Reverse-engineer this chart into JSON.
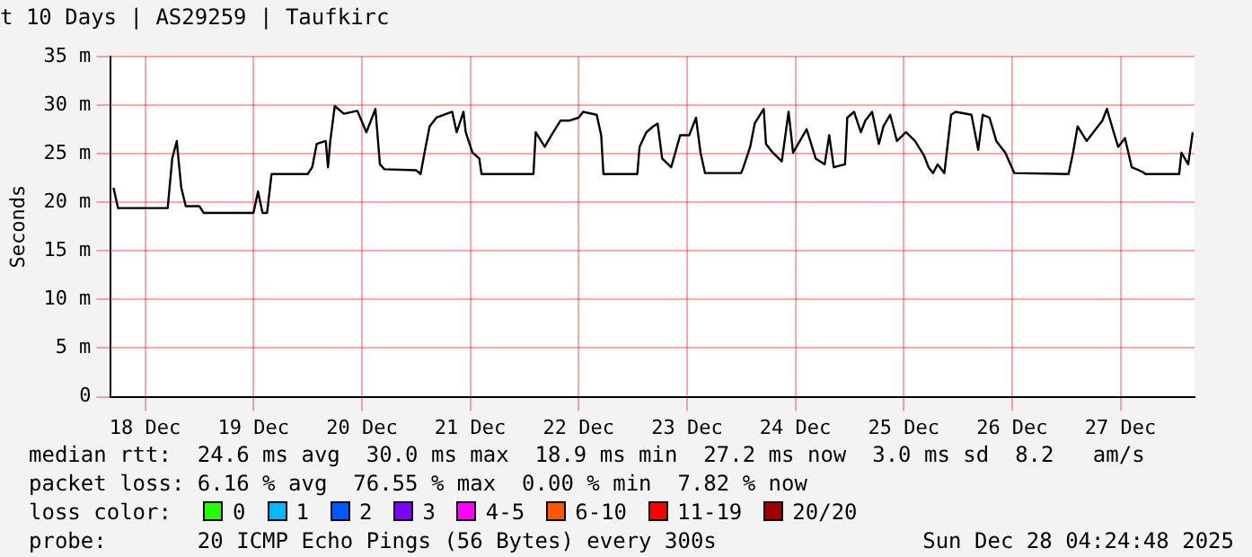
{
  "chart_data": {
    "type": "line",
    "title": "t 10 Days | AS29259 | Taufkirc",
    "ylabel": "Seconds",
    "xlim": [
      "--12-18T04:24",
      "--12-28T04:24"
    ],
    "xticks": [
      {
        "value": "--12-18T12:00",
        "label": "18 Dec"
      },
      {
        "value": "--12-19T12:00",
        "label": "19 Dec"
      },
      {
        "value": "--12-20T12:00",
        "label": "20 Dec"
      },
      {
        "value": "--12-21T12:00",
        "label": "21 Dec"
      },
      {
        "value": "--12-22T12:00",
        "label": "22 Dec"
      },
      {
        "value": "--12-23T12:00",
        "label": "23 Dec"
      },
      {
        "value": "--12-24T12:00",
        "label": "24 Dec"
      },
      {
        "value": "--12-25T12:00",
        "label": "25 Dec"
      },
      {
        "value": "--12-26T12:00",
        "label": "26 Dec"
      },
      {
        "value": "--12-27T12:00",
        "label": "27 Dec"
      }
    ],
    "ylim": [
      0,
      35
    ],
    "yticks": [
      0,
      {
        "value": 5,
        "label": "5 m"
      },
      {
        "value": 10,
        "label": "10 m"
      },
      {
        "value": 15,
        "label": "15 m"
      },
      {
        "value": 20,
        "label": "20 m"
      },
      {
        "value": 25,
        "label": "25 m"
      },
      {
        "value": 30,
        "label": "30 m"
      },
      {
        "value": 35,
        "label": "35 m"
      }
    ],
    "grid": true,
    "x": [
      "--12-18T05:00",
      "--12-18T06:00",
      "--12-18T17:00",
      "--12-18T18:00",
      "--12-18T19:00",
      "--12-18T20:00",
      "--12-18T21:00",
      "--12-19T00:00",
      "--12-19T01:00",
      "--12-19T12:00",
      "--12-19T13:00",
      "--12-19T14:00",
      "--12-19T15:00",
      "--12-19T16:00",
      "--12-20T00:00",
      "--12-20T01:00",
      "--12-20T02:00",
      "--12-20T04:00",
      "--12-20T04:30",
      "--12-20T05:00",
      "--12-20T06:00",
      "--12-20T08:00",
      "--12-20T11:00",
      "--12-20T13:00",
      "--12-20T15:00",
      "--12-20T16:00",
      "--12-20T17:00",
      "--12-21T00:00",
      "--12-21T01:00",
      "--12-21T02:00",
      "--12-21T03:00",
      "--12-21T04:30",
      "--12-21T08:00",
      "--12-21T09:00",
      "--12-21T10:30",
      "--12-21T11:00",
      "--12-21T12:30",
      "--12-21T14:00",
      "--12-21T14:30",
      "--12-22T02:00",
      "--12-22T02:30",
      "--12-22T04:30",
      "--12-22T06:00",
      "--12-22T08:00",
      "--12-22T10:00",
      "--12-22T12:00",
      "--12-22T13:00",
      "--12-22T16:00",
      "--12-22T17:00",
      "--12-22T17:30",
      "--12-23T01:00",
      "--12-23T01:30",
      "--12-23T03:00",
      "--12-23T04:30",
      "--12-23T05:30",
      "--12-23T06:30",
      "--12-23T08:30",
      "--12-23T10:30",
      "--12-23T12:30",
      "--12-23T14:00",
      "--12-23T15:00",
      "--12-23T16:00",
      "--12-24T00:00",
      "--12-24T00:30",
      "--12-24T02:00",
      "--12-24T03:00",
      "--12-24T05:00",
      "--12-24T05:30",
      "--12-24T07:00",
      "--12-24T09:00",
      "--12-24T10:30",
      "--12-24T11:30",
      "--12-24T14:30",
      "--12-24T16:30",
      "--12-24T18:30",
      "--12-24T19:30",
      "--12-24T20:30",
      "--12-24T23:00",
      "--12-24T23:30",
      "--12-25T01:00",
      "--12-25T02:30",
      "--12-25T03:30",
      "--12-25T05:00",
      "--12-25T06:30",
      "--12-25T07:30",
      "--12-25T09:00",
      "--12-25T10:30",
      "--12-25T12:30",
      "--12-25T14:30",
      "--12-25T16:30",
      "--12-25T17:30",
      "--12-25T18:30",
      "--12-25T19:30",
      "--12-25T21:00",
      "--12-25T22:30",
      "--12-25T23:30",
      "--12-26T03:00",
      "--12-26T04:30",
      "--12-26T05:30",
      "--12-26T07:00",
      "--12-26T08:30",
      "--12-26T10:30",
      "--12-26T12:30",
      "--12-27T00:30",
      "--12-27T01:30",
      "--12-27T02:30",
      "--12-27T04:30",
      "--12-27T06:00",
      "--12-27T08:00",
      "--12-27T09:00",
      "--12-27T10:30",
      "--12-27T11:30",
      "--12-27T13:00",
      "--12-27T14:30",
      "--12-27T17:00",
      "--12-27T17:30",
      "--12-28T01:00",
      "--12-28T01:30",
      "--12-28T03:00",
      "--12-28T04:00"
    ],
    "series": [
      {
        "color": "#000000",
        "values": [
          21.5,
          19.4,
          19.4,
          24.5,
          26.3,
          21.5,
          19.6,
          19.6,
          18.9,
          18.9,
          21.1,
          18.9,
          18.9,
          22.9,
          22.9,
          23.6,
          26,
          26.3,
          23.6,
          26.3,
          29.9,
          29.1,
          29.4,
          27.2,
          29.6,
          23.9,
          23.4,
          23.3,
          22.9,
          25.4,
          27.8,
          28.7,
          29.3,
          27.2,
          29.3,
          27.2,
          25.1,
          24.5,
          22.9,
          22.9,
          27.2,
          25.7,
          26.9,
          28.4,
          28.4,
          28.7,
          29.3,
          29,
          26.9,
          22.9,
          22.9,
          25.7,
          27.2,
          27.8,
          28.1,
          24.5,
          23.6,
          26.9,
          26.9,
          28.7,
          25.1,
          23,
          23,
          23.6,
          25.7,
          28.1,
          29.6,
          26,
          25.1,
          24.2,
          29.3,
          25.1,
          27.5,
          24.5,
          23.9,
          26.9,
          23.6,
          23.9,
          28.7,
          29.3,
          27.2,
          28.4,
          29.3,
          26,
          27.8,
          29,
          26.3,
          27.2,
          26.3,
          24.8,
          23.6,
          23,
          23.9,
          23,
          29,
          29.3,
          29,
          25.4,
          29,
          28.7,
          26.3,
          25.1,
          23,
          22.9,
          25.1,
          27.8,
          26.3,
          27.2,
          28.4,
          29.6,
          27.2,
          25.7,
          26.6,
          23.6,
          23.1,
          22.9,
          22.9,
          25.1,
          23.9,
          27.2
        ]
      }
    ],
    "annotations": [
      "median rtt:  24.6 ms avg  30.0 ms max  18.9 ms min  27.2 ms now  3.0 ms sd  8.2   am/s",
      "packet loss: 6.16 % avg  76.55 % max  0.00 % min  7.82 % now",
      "loss color:",
      "0",
      "1",
      "2",
      "3",
      "4-5",
      "6-10",
      "11-19",
      "20/20",
      "probe:       20 ICMP Echo Pings (56 Bytes) every 300s",
      "Sun Dec 28 04:24:48 2025"
    ]
  }
}
